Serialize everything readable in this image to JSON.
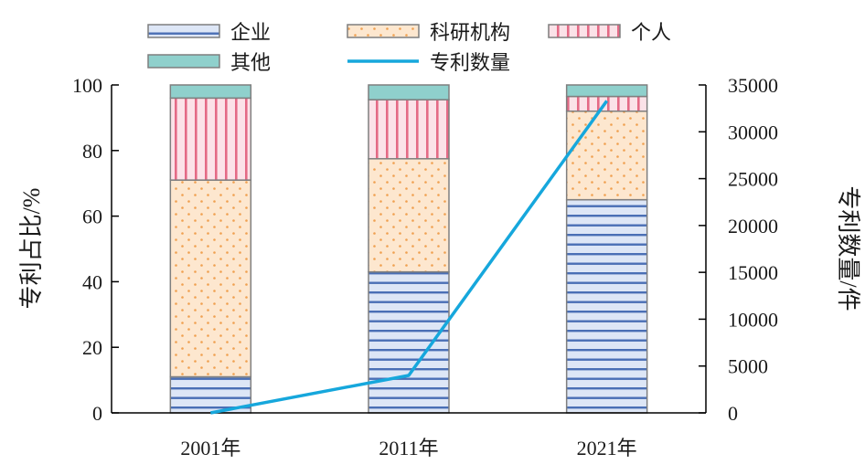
{
  "chart_data": {
    "type": "bar",
    "stacked": true,
    "categories": [
      "2001年",
      "2011年",
      "2021年"
    ],
    "series": [
      {
        "name": "企业",
        "values": [
          11,
          43,
          65
        ]
      },
      {
        "name": "科研机构",
        "values": [
          60,
          34.5,
          27
        ]
      },
      {
        "name": "个人",
        "values": [
          25,
          18,
          4.5
        ]
      },
      {
        "name": "其他",
        "values": [
          4,
          4.5,
          3.5
        ]
      }
    ],
    "line_series": {
      "name": "专利数量",
      "values": [
        0,
        4000,
        33300
      ]
    },
    "ylabel": "专利占比/%",
    "y2label": "专利数量/件",
    "ylim": [
      0,
      100
    ],
    "y2lim": [
      0,
      35000
    ],
    "yticks": [
      "0",
      "20",
      "40",
      "60",
      "80",
      "100"
    ],
    "y2ticks": [
      "0",
      "5000",
      "10000",
      "15000",
      "20000",
      "25000",
      "30000",
      "35000"
    ],
    "grid": false,
    "legend_position": "top",
    "colors": {
      "企业": "#4a6fb5",
      "企业_fill": "#dde6f6",
      "科研机构": "#f0a050",
      "科研机构_fill": "#fde7cf",
      "个人": "#e46a86",
      "个人_fill": "#fbe2e8",
      "其他": "#8fd0cc",
      "line": "#16a7dc",
      "border": "#7f7f7f"
    }
  }
}
